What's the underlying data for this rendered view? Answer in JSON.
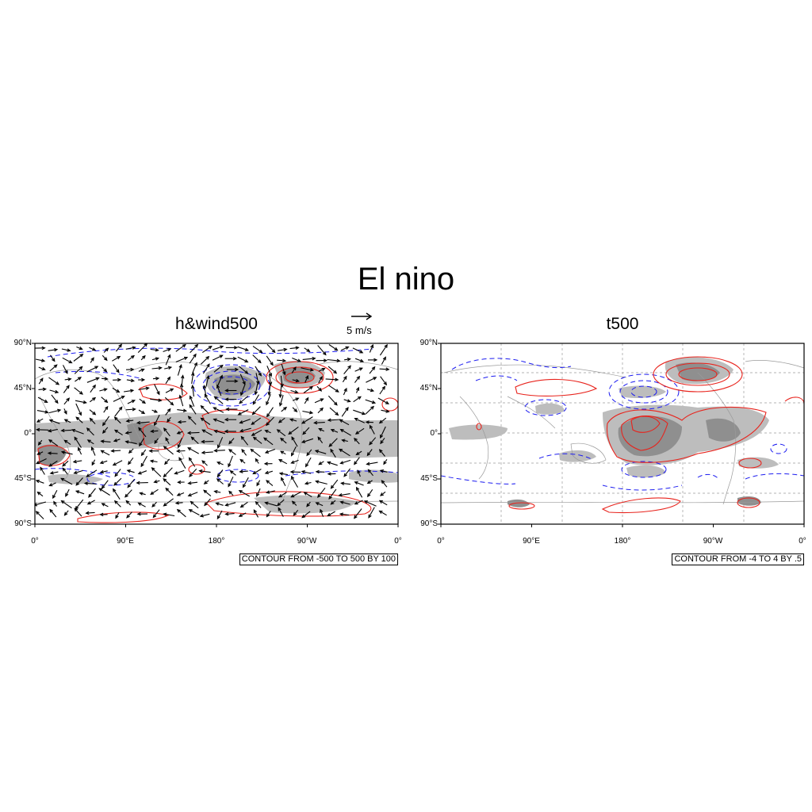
{
  "figure": {
    "title": "El nino"
  },
  "panels": [
    {
      "id": "left",
      "title": "h&wind500",
      "reference_vector_label": "5 m/s",
      "contour_info": "CONTOUR FROM -500 TO 500 BY 100",
      "y_tick_labels": [
        "90°N",
        "45°N",
        "0°",
        "45°S",
        "90°S"
      ],
      "x_tick_labels": [
        "0°",
        "90°E",
        "180°",
        "90°W",
        "0°"
      ]
    },
    {
      "id": "right",
      "title": "t500",
      "contour_info": "CONTOUR FROM -4 TO 4 BY .5",
      "y_tick_labels": [
        "90°N",
        "45°N",
        "0°",
        "45°S",
        "90°S"
      ],
      "x_tick_labels": [
        "0°",
        "90°E",
        "180°",
        "90°W",
        "0°"
      ]
    }
  ],
  "colors": {
    "positive_contour": "#e8231c",
    "negative_contour": "#1c1cf0",
    "shade_light": "#bdbdbd",
    "shade_dark": "#8f8f8f",
    "coastline": "#9a9a9a",
    "wind_vector": "#000000",
    "grid": "#9a9a9a"
  },
  "map": {
    "projection": "cylindrical equidistant",
    "lon_range": [
      0,
      360
    ],
    "lat_range": [
      -90,
      90
    ],
    "positive_contour_style": "solid",
    "negative_contour_style": "dashed"
  }
}
